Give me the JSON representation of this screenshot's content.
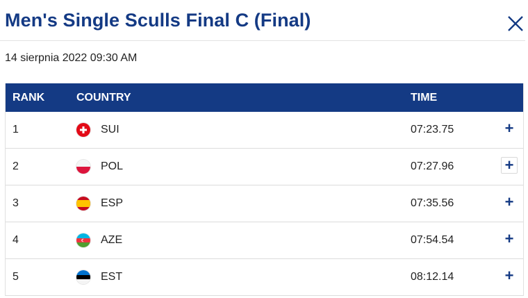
{
  "dialog": {
    "title": "Men's Single Sculls Final C (Final)",
    "date": "14 sierpnia 2022 09:30 AM",
    "close_icon": "close-icon"
  },
  "table": {
    "headers": {
      "rank": "RANK",
      "country": "COUNTRY",
      "time": "TIME"
    },
    "rows": [
      {
        "rank": "1",
        "country": "SUI",
        "time": "07:23.75",
        "expand": "+",
        "flag": "switzerland-flag-icon"
      },
      {
        "rank": "2",
        "country": "POL",
        "time": "07:27.96",
        "expand": "+",
        "flag": "poland-flag-icon"
      },
      {
        "rank": "3",
        "country": "ESP",
        "time": "07:35.56",
        "expand": "+",
        "flag": "spain-flag-icon"
      },
      {
        "rank": "4",
        "country": "AZE",
        "time": "07:54.54",
        "expand": "+",
        "flag": "azerbaijan-flag-icon"
      },
      {
        "rank": "5",
        "country": "EST",
        "time": "08:12.14",
        "expand": "+",
        "flag": "estonia-flag-icon"
      }
    ]
  },
  "colors": {
    "brand": "#143a84",
    "header_text": "#ffffff"
  }
}
